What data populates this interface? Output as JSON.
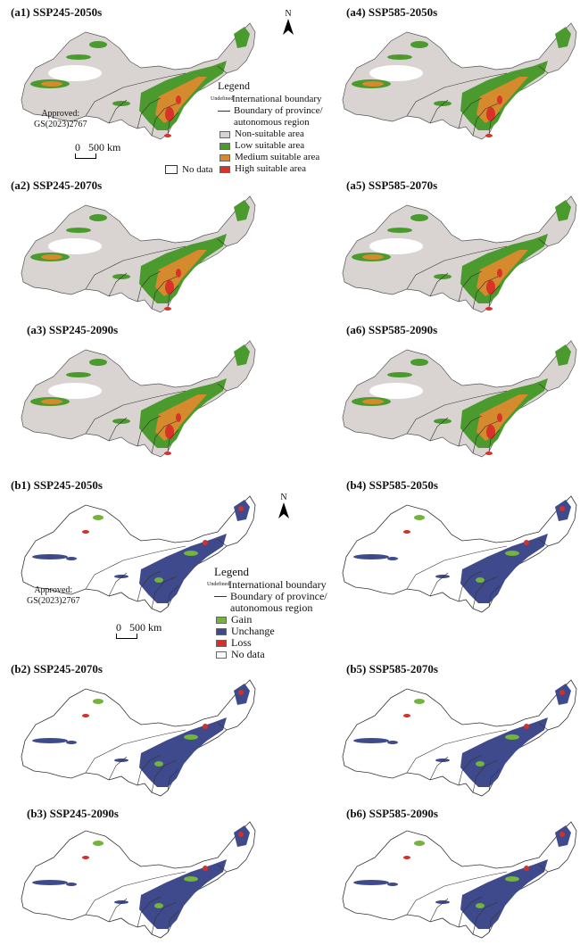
{
  "panels_a": [
    {
      "id": "a1",
      "title": "(a1) SSP245-2050s"
    },
    {
      "id": "a4",
      "title": "(a4) SSP585-2050s"
    },
    {
      "id": "a2",
      "title": "(a2) SSP245-2070s"
    },
    {
      "id": "a5",
      "title": "(a5) SSP585-2070s"
    },
    {
      "id": "a3",
      "title": "(a3) SSP245-2090s"
    },
    {
      "id": "a6",
      "title": "(a6) SSP585-2090s"
    }
  ],
  "panels_b": [
    {
      "id": "b1",
      "title": "(b1) SSP245-2050s"
    },
    {
      "id": "b4",
      "title": "(b4) SSP585-2050s"
    },
    {
      "id": "b2",
      "title": "(b2) SSP245-2070s"
    },
    {
      "id": "b5",
      "title": "(b5) SSP585-2070s"
    },
    {
      "id": "b3",
      "title": "(b3) SSP245-2090s"
    },
    {
      "id": "b6",
      "title": "(b6) SSP585-2090s"
    }
  ],
  "north_label": "N",
  "approved": {
    "line1": "Approved:",
    "line2": "GS(2023)2767"
  },
  "scale": {
    "zero": "0",
    "label": "500 km"
  },
  "no_data": "No data",
  "legend_a": {
    "title": "Legend",
    "undefined_tag": "Undefined",
    "international": "International boundary",
    "province_1": "Boundary of province/",
    "province_2": "autonomous region",
    "items": [
      {
        "label": "Non-suitable area",
        "color": "#d9d4d2"
      },
      {
        "label": "Low suitable area",
        "color": "#4a9a2e"
      },
      {
        "label": "Medium suitable area",
        "color": "#d68a2e"
      },
      {
        "label": "High suitable area",
        "color": "#d93228"
      }
    ]
  },
  "legend_b": {
    "title": "Legend",
    "undefined_tag": "Undefined",
    "international": "International boundary",
    "province_1": "Boundary of province/",
    "province_2": "autonomous region",
    "items": [
      {
        "label": "Gain",
        "color": "#72b43c"
      },
      {
        "label": "Unchange",
        "color": "#3e4a8c"
      },
      {
        "label": "Loss",
        "color": "#d4302a"
      },
      {
        "label": "No data",
        "color": "#ffffff"
      }
    ]
  }
}
